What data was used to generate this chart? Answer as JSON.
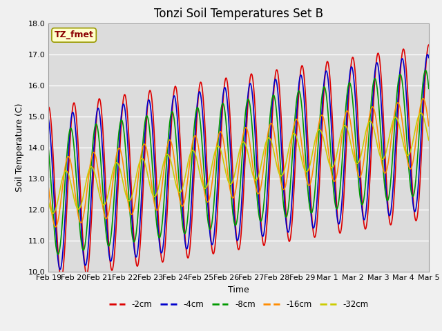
{
  "title": "Tonzi Soil Temperatures Set B",
  "xlabel": "Time",
  "ylabel": "Soil Temperature (C)",
  "ylim": [
    10.0,
    18.0
  ],
  "yticks": [
    10.0,
    11.0,
    12.0,
    13.0,
    14.0,
    15.0,
    16.0,
    17.0,
    18.0
  ],
  "x_labels": [
    "Feb 19",
    "Feb 20",
    "Feb 21",
    "Feb 22",
    "Feb 23",
    "Feb 24",
    "Feb 25",
    "Feb 26",
    "Feb 27",
    "Feb 28",
    "Feb 29",
    "Mar 1",
    "Mar 2",
    "Mar 3",
    "Mar 4",
    "Mar 5"
  ],
  "annotation": "TZ_fmet",
  "annotation_color": "#8B0000",
  "annotation_bg": "#FFFFCC",
  "series_colors": [
    "#DD0000",
    "#0000CC",
    "#009900",
    "#FF8C00",
    "#CCCC00"
  ],
  "series_labels": [
    "-2cm",
    "-4cm",
    "-8cm",
    "-16cm",
    "-32cm"
  ],
  "background_color": "#DCDCDC",
  "grid_color": "#FFFFFF",
  "title_fontsize": 12,
  "axis_label_fontsize": 9,
  "tick_fontsize": 8,
  "linewidth": 1.2
}
